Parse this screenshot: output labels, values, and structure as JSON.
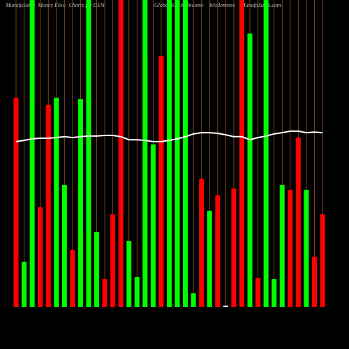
{
  "chart_data": {
    "type": "bar",
    "title": "MunafaSutra  Money Flow  Charts for DEW                                   Global Equity Income    Wisdomtree    MunafaSutra.com",
    "categories": [
      null,
      null,
      null,
      null,
      null,
      null,
      null,
      null,
      null,
      null,
      null,
      null,
      null,
      null,
      null,
      null,
      null,
      null,
      null,
      null,
      null,
      null,
      null,
      null,
      null,
      null,
      null,
      null,
      null,
      null,
      null,
      null,
      null,
      null,
      null,
      null,
      null,
      null,
      null
    ],
    "values": [
      68.2,
      14.8,
      100,
      32.5,
      65.9,
      68.2,
      39.8,
      18.6,
      67.7,
      100,
      24.5,
      9.1,
      30.2,
      100,
      21.6,
      9.8,
      100,
      53,
      81.8,
      100,
      100,
      100,
      4.5,
      41.8,
      31.4,
      36.4,
      0.5,
      38.6,
      100,
      89.1,
      9.5,
      100,
      9.1,
      39.8,
      38.2,
      55.2,
      38.2,
      16.4,
      30.2
    ],
    "colors": [
      "#ff0000",
      "#00ff00",
      "#00ff00",
      "#ff0000",
      "#ff0000",
      "#00ff00",
      "#00ff00",
      "#ff0000",
      "#00ff00",
      "#00ff00",
      "#00ff00",
      "#ff0000",
      "#ff0000",
      "#ff0000",
      "#00ff00",
      "#00ff00",
      "#00ff00",
      "#00ff00",
      "#ff0000",
      "#00ff00",
      "#00ff00",
      "#00ff00",
      "#00ff00",
      "#ff0000",
      "#00ff00",
      "#ff0000",
      "#ffffff",
      "#ff0000",
      "#ff0000",
      "#00ff00",
      "#ff0000",
      "#00ff00",
      "#00ff00",
      "#00ff00",
      "#ff0000",
      "#ff0000",
      "#00ff00",
      "#ff0000",
      "#ff0000"
    ],
    "line": {
      "color": "#ffffff",
      "values": [
        53.9,
        54.3,
        54.8,
        55,
        55,
        55.2,
        55.5,
        55.2,
        55.5,
        55.7,
        55.7,
        55.9,
        55.9,
        55.5,
        54.5,
        54.5,
        54.3,
        53.9,
        53.9,
        54.3,
        54.8,
        55.5,
        56.4,
        56.8,
        56.8,
        56.6,
        56.1,
        55.5,
        55.5,
        54.5,
        55.2,
        55.7,
        56.4,
        56.8,
        57.3,
        57.3,
        56.8,
        57,
        56.8
      ]
    },
    "ylim": [
      0,
      100
    ]
  }
}
